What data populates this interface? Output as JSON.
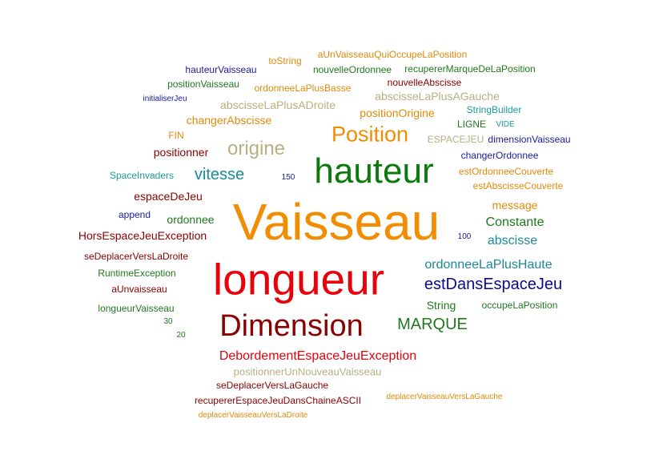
{
  "words": [
    {
      "text": "aUnVaisseauQuiOccupeLaPosition",
      "color": "#e08a0b"
    },
    {
      "text": "toString",
      "color": "#e08a0b"
    },
    {
      "text": "hauteurVaisseau",
      "color": "#1a1aa0"
    },
    {
      "text": "nouvelleOrdonnee",
      "color": "#1e7a1e"
    },
    {
      "text": "recupererMarqueDeLaPosition",
      "color": "#1e7a1e"
    },
    {
      "text": "positionVaisseau",
      "color": "#1e7a1e"
    },
    {
      "text": "ordonneeLaPlusBasse",
      "color": "#e08a0b"
    },
    {
      "text": "nouvelleAbscisse",
      "color": "#8b0000"
    },
    {
      "text": "initialiserJeu",
      "color": "#1a1aa0"
    },
    {
      "text": "abscisseLaPlusAGauche",
      "color": "#b8b080"
    },
    {
      "text": "abscisseLaPlusADroite",
      "color": "#b8b080"
    },
    {
      "text": "StringBuilder",
      "color": "#1a9a9a"
    },
    {
      "text": "positionOrigine",
      "color": "#e08a0b"
    },
    {
      "text": "changerAbscisse",
      "color": "#e08a0b"
    },
    {
      "text": "LIGNE",
      "color": "#1e7a1e"
    },
    {
      "text": "VIDE",
      "color": "#1a9a9a"
    },
    {
      "text": "Position",
      "color": "#f28c00"
    },
    {
      "text": "FIN",
      "color": "#e08a0b"
    },
    {
      "text": "ESPACEJEU",
      "color": "#b8b080"
    },
    {
      "text": "dimensionVaisseau",
      "color": "#1a1aa0"
    },
    {
      "text": "origine",
      "color": "#b8b080"
    },
    {
      "text": "positionner",
      "color": "#8b0000"
    },
    {
      "text": "changerOrdonnee",
      "color": "#1a1aa0"
    },
    {
      "text": "hauteur",
      "color": "#0a7a0a"
    },
    {
      "text": "estOrdonneeCouverte",
      "color": "#e08a0b"
    },
    {
      "text": "SpaceInvaders",
      "color": "#1a9a9a"
    },
    {
      "text": "vitesse",
      "color": "#1a8a9a"
    },
    {
      "text": "150",
      "color": "#1a1aa0"
    },
    {
      "text": "estAbscisseCouverte",
      "color": "#e08a0b"
    },
    {
      "text": "espaceDeJeu",
      "color": "#8b0000"
    },
    {
      "text": "message",
      "color": "#e08a0b"
    },
    {
      "text": "append",
      "color": "#1a1aa0"
    },
    {
      "text": "ordonnee",
      "color": "#1e7a1e"
    },
    {
      "text": "Vaisseau",
      "color": "#f28c00"
    },
    {
      "text": "Constante",
      "color": "#1e7a1e"
    },
    {
      "text": "HorsEspaceJeuException",
      "color": "#8b0000"
    },
    {
      "text": "100",
      "color": "#1a1aa0"
    },
    {
      "text": "abscisse",
      "color": "#1a8a9a"
    },
    {
      "text": "seDeplacerVersLaDroite",
      "color": "#8b0000"
    },
    {
      "text": "ordonneeLaPlusHaute",
      "color": "#1a8a9a"
    },
    {
      "text": "RuntimeException",
      "color": "#1e7a1e"
    },
    {
      "text": "longueur",
      "color": "#e8000a"
    },
    {
      "text": "estDansEspaceJeu",
      "color": "#0a0a8a"
    },
    {
      "text": "aUnvaisseau",
      "color": "#8b0000"
    },
    {
      "text": "String",
      "color": "#1e7a1e"
    },
    {
      "text": "occupeLaPosition",
      "color": "#1e7a1e"
    },
    {
      "text": "longueurVaisseau",
      "color": "#1e7a1e"
    },
    {
      "text": "30",
      "color": "#1e7a1e"
    },
    {
      "text": "MARQUE",
      "color": "#1e7a1e"
    },
    {
      "text": "Dimension",
      "color": "#8b0000"
    },
    {
      "text": "20",
      "color": "#1e7a1e"
    },
    {
      "text": "DebordementEspaceJeuException",
      "color": "#e8000a"
    },
    {
      "text": "positionnerUnNouveauVaisseau",
      "color": "#b8b080"
    },
    {
      "text": "seDeplacerVersLaGauche",
      "color": "#8b0000"
    },
    {
      "text": "recupererEspaceJeuDansChaineASCII",
      "color": "#8b0000"
    },
    {
      "text": "deplacerVaisseauVersLaGauche",
      "color": "#e08a0b"
    },
    {
      "text": "deplacerVaisseauVersLaDroite",
      "color": "#e08a0b"
    }
  ]
}
